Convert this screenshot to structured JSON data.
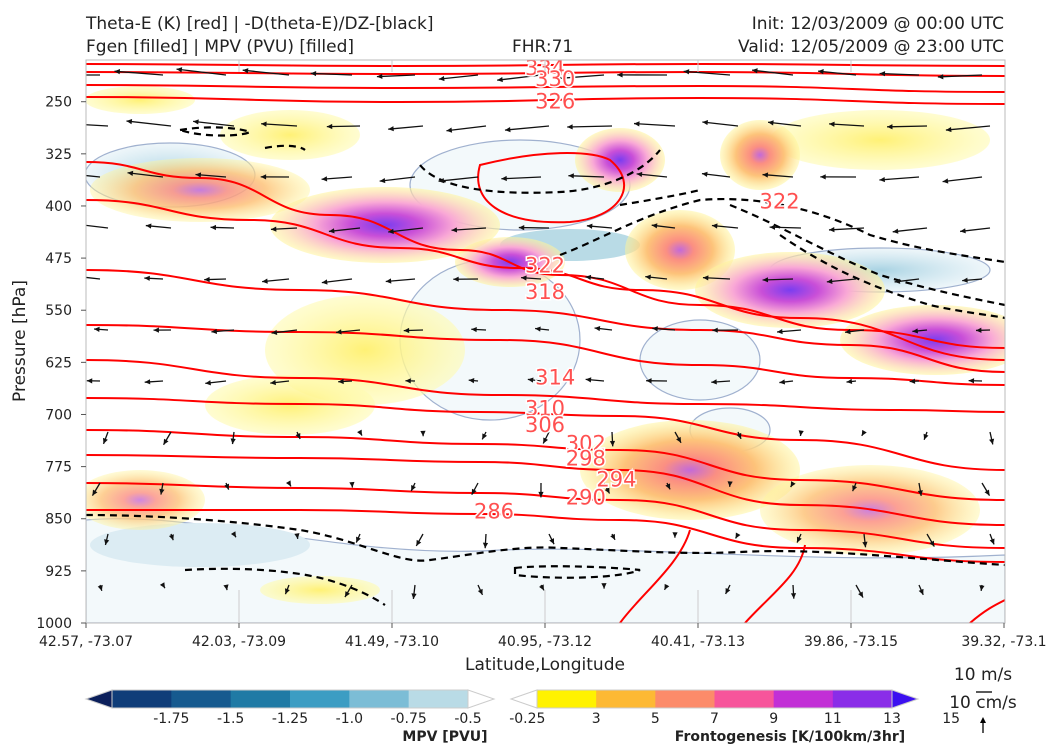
{
  "header": {
    "line1_left": "Theta-E (K) [red] | -D(theta-E)/DZ-[black]",
    "line2_left": "Fgen [filled] | MPV (PVU) [filled]",
    "fhr": "FHR:71",
    "init": "Init: 12/03/2009 @ 00:00 UTC",
    "valid": "Valid: 12/05/2009 @ 23:00 UTC"
  },
  "chart_data": {
    "type": "cross-section",
    "title": "",
    "xlabel": "Latitude,Longitude",
    "ylabel": "Pressure [hPa]",
    "x_ticks": [
      "42.57, -73.07",
      "42.03, -73.09",
      "41.49, -73.10",
      "40.95, -73.12",
      "40.41, -73.13",
      "39.86, -73.15",
      "39.32, -73.1"
    ],
    "y_ticks": [
      250,
      325,
      400,
      475,
      550,
      625,
      700,
      775,
      850,
      925,
      1000
    ],
    "ylim": [
      1000,
      190
    ],
    "y_scale": "linear, inverted",
    "grid": false,
    "theta_e_contour_labels": [
      {
        "value": "334",
        "x_index": 4.5,
        "p": 200
      },
      {
        "value": "330",
        "x_index": 4.6,
        "p": 216
      },
      {
        "value": "326",
        "x_index": 4.6,
        "p": 248
      },
      {
        "value": "322",
        "x_index": 4.5,
        "p": 484
      },
      {
        "value": "322",
        "x_index": 6.8,
        "p": 392
      },
      {
        "value": "318",
        "x_index": 4.5,
        "p": 522
      },
      {
        "value": "314",
        "x_index": 4.6,
        "p": 645
      },
      {
        "value": "310",
        "x_index": 4.5,
        "p": 690
      },
      {
        "value": "306",
        "x_index": 4.5,
        "p": 714
      },
      {
        "value": "302",
        "x_index": 4.9,
        "p": 740
      },
      {
        "value": "298",
        "x_index": 4.9,
        "p": 762
      },
      {
        "value": "294",
        "x_index": 5.2,
        "p": 792
      },
      {
        "value": "290",
        "x_index": 4.9,
        "p": 818
      },
      {
        "value": "286",
        "x_index": 4.0,
        "p": 838
      }
    ],
    "colorbars": [
      {
        "label": "MPV [PVU]",
        "tick_labels": [
          "-1.75",
          "-1.5",
          "-1.25",
          "-1.0",
          "-0.75",
          "-0.5",
          "-0.25"
        ],
        "colors": [
          "#0b1f5b",
          "#0f3d79",
          "#165a8f",
          "#1f7aa5",
          "#3c9dc3",
          "#7cbdd6",
          "#b9dbe6",
          "#ffffff"
        ],
        "extend": "both"
      },
      {
        "label": "Frontogenesis [K/100km/3hr]",
        "tick_labels": [
          "3",
          "5",
          "7",
          "9",
          "11",
          "13",
          "15"
        ],
        "colors": [
          "#ffffff",
          "#fff200",
          "#fdb934",
          "#fc8b6a",
          "#f7559b",
          "#c22fd6",
          "#8a2de8",
          "#3c10f0"
        ],
        "extend": "both"
      }
    ],
    "wind_reference": {
      "horizontal": "10 m/s",
      "vertical": "10 cm/s"
    },
    "line_colors": {
      "theta_e": "#ff0000",
      "dtheta_dz": "#000000",
      "mpv_outline": "#a0b1cf"
    }
  }
}
